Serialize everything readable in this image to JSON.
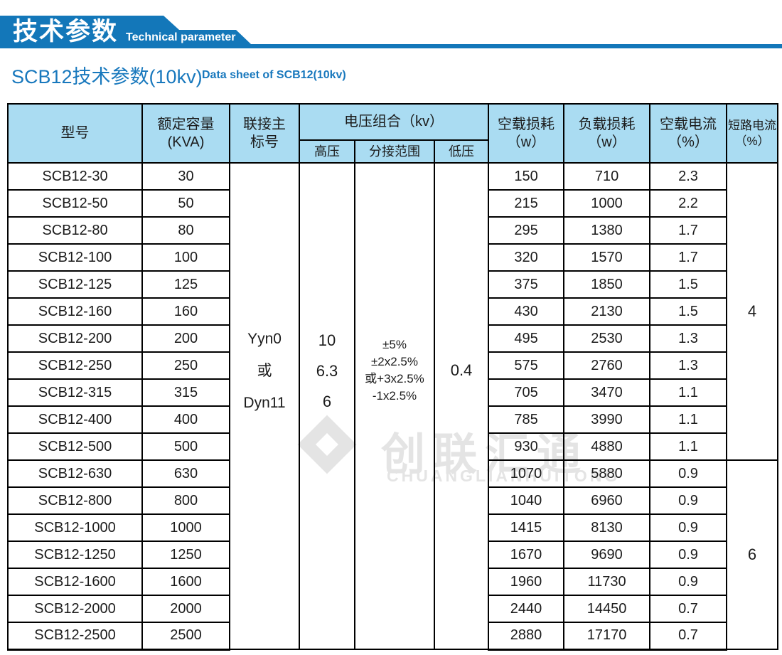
{
  "banner": {
    "title_cn": "技术参数",
    "title_en": "Technical parameter"
  },
  "page": {
    "title": "SCB12技术参数(10kv)",
    "subtitle": "Data sheet of SCB12(10kv)"
  },
  "watermark": {
    "cn": "创联汇通",
    "en": "CHUANGLIANHUITONG"
  },
  "colors": {
    "banner_blue": "#1377b9",
    "header_bg": "#aadcf2",
    "title_blue": "#1878bd",
    "watermark_gray": "#e4e4e4"
  },
  "table": {
    "headers": {
      "model": "型号",
      "capacity": [
        "额定容量",
        "(KVA)"
      ],
      "link": [
        "联接主",
        "标号"
      ],
      "voltage_group": "电压组合（kv）",
      "hv": "高压",
      "tap": "分接范围",
      "lv": "低压",
      "no_load_loss": [
        "空载损耗",
        "（w）"
      ],
      "load_loss": [
        "负载损耗",
        "（w）"
      ],
      "no_load_current": [
        "空载电流",
        "（%）"
      ],
      "short_circuit_current": [
        "短路电流",
        "（%）"
      ]
    },
    "merged": {
      "link": [
        "Yyn0",
        "或",
        "Dyn11"
      ],
      "hv": [
        "10",
        "6.3",
        "6"
      ],
      "tap": [
        "±5%",
        "±2x2.5%",
        "或+3x2.5%",
        "-1x2.5%"
      ],
      "lv": [
        "0.4"
      ],
      "isc_group1": "4",
      "isc_group1_rows": 11,
      "isc_group2": "6",
      "isc_group2_rows": 7
    },
    "rows": [
      {
        "model": "SCB12-30",
        "kva": "30",
        "p0": "150",
        "pk": "710",
        "i0": "2.3"
      },
      {
        "model": "SCB12-50",
        "kva": "50",
        "p0": "215",
        "pk": "1000",
        "i0": "2.2"
      },
      {
        "model": "SCB12-80",
        "kva": "80",
        "p0": "295",
        "pk": "1380",
        "i0": "1.7"
      },
      {
        "model": "SCB12-100",
        "kva": "100",
        "p0": "320",
        "pk": "1570",
        "i0": "1.7"
      },
      {
        "model": "SCB12-125",
        "kva": "125",
        "p0": "375",
        "pk": "1850",
        "i0": "1.5"
      },
      {
        "model": "SCB12-160",
        "kva": "160",
        "p0": "430",
        "pk": "2130",
        "i0": "1.5"
      },
      {
        "model": "SCB12-200",
        "kva": "200",
        "p0": "495",
        "pk": "2530",
        "i0": "1.3"
      },
      {
        "model": "SCB12-250",
        "kva": "250",
        "p0": "575",
        "pk": "2760",
        "i0": "1.3"
      },
      {
        "model": "SCB12-315",
        "kva": "315",
        "p0": "705",
        "pk": "3470",
        "i0": "1.1"
      },
      {
        "model": "SCB12-400",
        "kva": "400",
        "p0": "785",
        "pk": "3990",
        "i0": "1.1"
      },
      {
        "model": "SCB12-500",
        "kva": "500",
        "p0": "930",
        "pk": "4880",
        "i0": "1.1"
      },
      {
        "model": "SCB12-630",
        "kva": "630",
        "p0": "1070",
        "pk": "5880",
        "i0": "0.9"
      },
      {
        "model": "SCB12-800",
        "kva": "800",
        "p0": "1040",
        "pk": "6960",
        "i0": "0.9"
      },
      {
        "model": "SCB12-1000",
        "kva": "1000",
        "p0": "1415",
        "pk": "8130",
        "i0": "0.9"
      },
      {
        "model": "SCB12-1250",
        "kva": "1250",
        "p0": "1670",
        "pk": "9690",
        "i0": "0.9"
      },
      {
        "model": "SCB12-1600",
        "kva": "1600",
        "p0": "1960",
        "pk": "11730",
        "i0": "0.9"
      },
      {
        "model": "SCB12-2000",
        "kva": "2000",
        "p0": "2440",
        "pk": "14450",
        "i0": "0.7"
      },
      {
        "model": "SCB12-2500",
        "kva": "2500",
        "p0": "2880",
        "pk": "17170",
        "i0": "0.7"
      }
    ]
  }
}
